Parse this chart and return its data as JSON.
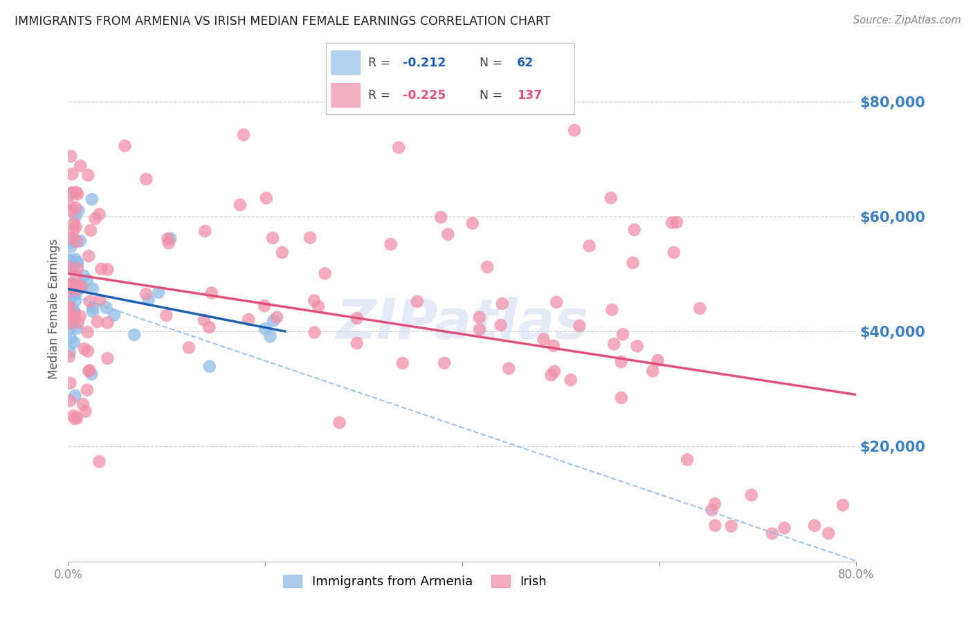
{
  "title": "IMMIGRANTS FROM ARMENIA VS IRISH MEDIAN FEMALE EARNINGS CORRELATION CHART",
  "source": "Source: ZipAtlas.com",
  "ylabel": "Median Female Earnings",
  "xlim": [
    0.0,
    0.8
  ],
  "ylim": [
    0,
    88000
  ],
  "yticks": [
    20000,
    40000,
    60000,
    80000
  ],
  "ytick_labels": [
    "$20,000",
    "$40,000",
    "$60,000",
    "$80,000"
  ],
  "xticks": [
    0.0,
    0.2,
    0.4,
    0.6,
    0.8
  ],
  "xtick_labels": [
    "0.0%",
    "",
    "",
    "",
    "80.0%"
  ],
  "watermark": "ZIPatlas",
  "armenia_color": "#90bce8",
  "irish_color": "#f090aa",
  "armenia_trendline_color": "#2060b0",
  "irish_trendline_color": "#e0507a",
  "dashed_trendline_color": "#90b8e0",
  "background_color": "#ffffff",
  "grid_color": "#d0d0d0",
  "ytick_color": "#4080c0",
  "r_armenia": -0.212,
  "n_armenia": 62,
  "r_irish": -0.225,
  "n_irish": 137
}
